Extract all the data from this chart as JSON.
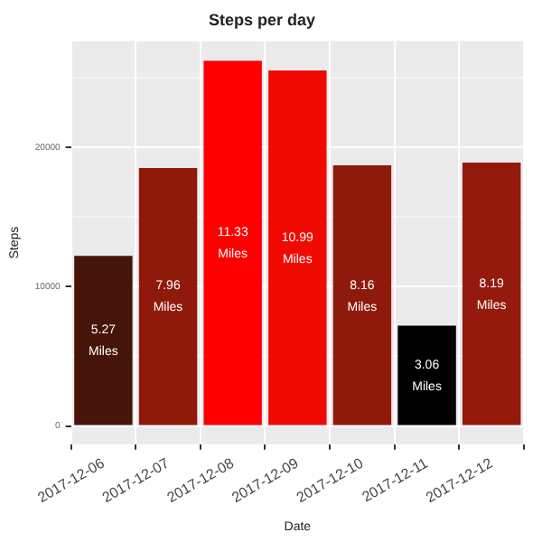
{
  "chart_data": {
    "type": "bar",
    "title": "Steps per day",
    "xlabel": "Date",
    "ylabel": "Steps",
    "categories": [
      "2017-12-06",
      "2017-12-07",
      "2017-12-08",
      "2017-12-09",
      "2017-12-10",
      "2017-12-11",
      "2017-12-12"
    ],
    "values": [
      12200,
      18500,
      26200,
      25500,
      18700,
      7200,
      18900
    ],
    "colors": [
      "#45150a",
      "#8f1a0c",
      "#ff0000",
      "#f00a00",
      "#8f1a0c",
      "#000000",
      "#931a0c"
    ],
    "annotations": [
      {
        "text": "5.27 Miles",
        "x": "2017-12-06",
        "y": 6100
      },
      {
        "text": "7.96 Miles",
        "x": "2017-12-07",
        "y": 9300
      },
      {
        "text": "11.33 Miles",
        "x": "2017-12-08",
        "y": 13100
      },
      {
        "text": "10.99 Miles",
        "x": "2017-12-09",
        "y": 12700
      },
      {
        "text": "8.16 Miles",
        "x": "2017-12-10",
        "y": 9300
      },
      {
        "text": "3.06 Miles",
        "x": "2017-12-11",
        "y": 3600
      },
      {
        "text": "8.19 Miles",
        "x": "2017-12-12",
        "y": 9400
      }
    ],
    "ylim": [
      -1300,
      27600
    ],
    "yticks": [
      0,
      {
        "value": 5000,
        "label": null
      },
      10000,
      {
        "value": 15000,
        "label": null
      },
      20000,
      {
        "value": 25000,
        "label": null
      }
    ],
    "grid": true
  }
}
